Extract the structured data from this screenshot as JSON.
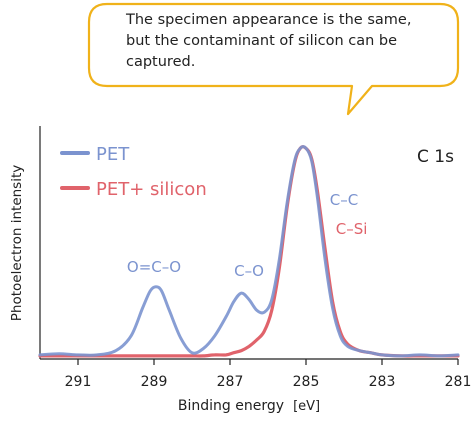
{
  "callout": {
    "lines": [
      "The specimen appearance is the same,",
      "but the contaminant of silicon can be",
      "captured."
    ]
  },
  "chart_data": {
    "type": "line",
    "xlabel": "Binding energy",
    "xlabel_unit": "[eV]",
    "ylabel": "Photoelectron intensity",
    "xlim": [
      292,
      281
    ],
    "x_reversed": true,
    "ylim": [
      0,
      1.0
    ],
    "x_ticks": [
      291,
      289,
      287,
      285,
      283,
      281
    ],
    "y_ticks_shown": false,
    "grid": false,
    "legend_position": "top-left",
    "panel_label": "C 1s",
    "colors": {
      "PET": "#7b93cf",
      "PET+ silicon": "#e0636b"
    },
    "series": [
      {
        "name": "PET",
        "color": "#7b93cf",
        "x": [
          292,
          291.5,
          291,
          290.5,
          290,
          289.6,
          289.3,
          289.1,
          288.95,
          288.8,
          288.6,
          288.3,
          288.0,
          287.7,
          287.4,
          287.1,
          286.9,
          286.7,
          286.5,
          286.3,
          286.1,
          285.9,
          285.7,
          285.5,
          285.3,
          285.15,
          285.0,
          284.85,
          284.7,
          284.5,
          284.3,
          284.1,
          283.9,
          283.6,
          283.3,
          283.0,
          282.5,
          282,
          281.5,
          281
        ],
        "y": [
          0.01,
          0.015,
          0.01,
          0.01,
          0.03,
          0.1,
          0.23,
          0.31,
          0.33,
          0.31,
          0.22,
          0.09,
          0.02,
          0.04,
          0.1,
          0.19,
          0.26,
          0.3,
          0.27,
          0.22,
          0.21,
          0.27,
          0.46,
          0.72,
          0.92,
          0.98,
          0.98,
          0.92,
          0.75,
          0.46,
          0.23,
          0.1,
          0.05,
          0.03,
          0.02,
          0.01,
          0.005,
          0.01,
          0.005,
          0.01
        ]
      },
      {
        "name": "PET+ silicon",
        "color": "#e0636b",
        "x": [
          292,
          291.5,
          291,
          290.5,
          290,
          289.6,
          289.3,
          289.1,
          288.95,
          288.8,
          288.6,
          288.3,
          288.0,
          287.7,
          287.4,
          287.1,
          286.9,
          286.7,
          286.5,
          286.3,
          286.1,
          285.9,
          285.7,
          285.5,
          285.3,
          285.15,
          285.0,
          284.85,
          284.7,
          284.5,
          284.3,
          284.1,
          283.9,
          283.6,
          283.3,
          283.0,
          282.5,
          282,
          281.5,
          281
        ],
        "y": [
          0.005,
          0.005,
          0.005,
          0.005,
          0.005,
          0.005,
          0.005,
          0.005,
          0.005,
          0.005,
          0.005,
          0.005,
          0.005,
          0.005,
          0.01,
          0.01,
          0.02,
          0.03,
          0.05,
          0.08,
          0.12,
          0.22,
          0.42,
          0.7,
          0.91,
          0.98,
          0.98,
          0.93,
          0.78,
          0.51,
          0.26,
          0.12,
          0.06,
          0.03,
          0.02,
          0.01,
          0.005,
          0.005,
          0.005,
          0.005
        ]
      }
    ],
    "annotations": [
      {
        "text": "O=C–O",
        "x": 289,
        "color": "#7b93cf"
      },
      {
        "text": "C–O",
        "x": 286.5,
        "color": "#7b93cf"
      },
      {
        "text": "C–C",
        "x": 284,
        "color": "#7b93cf"
      },
      {
        "text": "C–Si",
        "x": 283.8,
        "color": "#e0636b"
      }
    ]
  }
}
